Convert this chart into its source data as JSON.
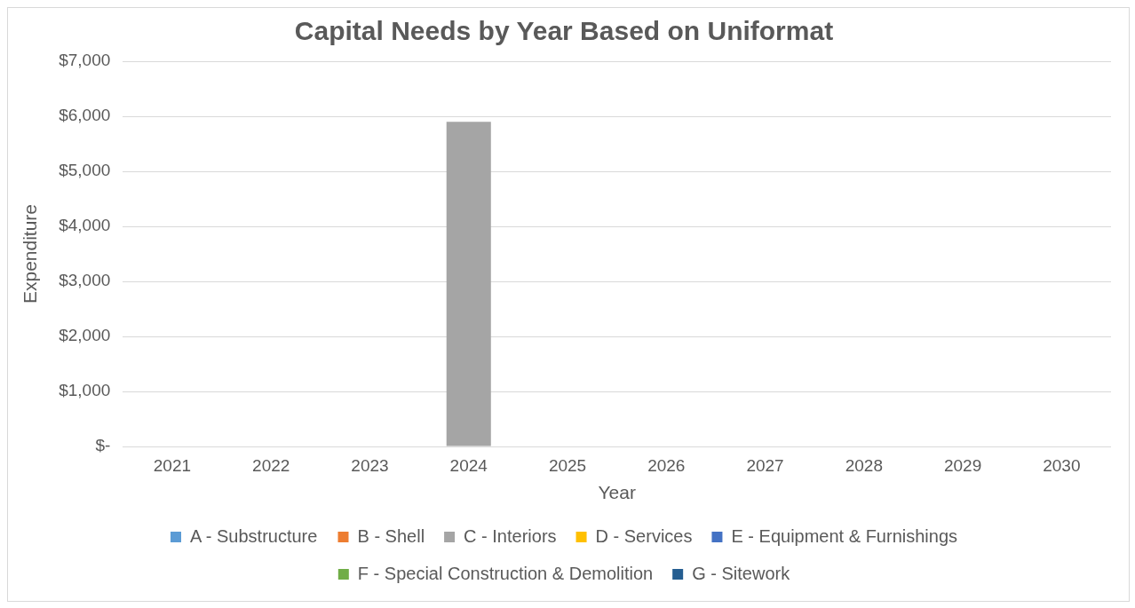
{
  "chart_data": {
    "type": "bar",
    "title": "Capital Needs by Year Based on Uniformat",
    "xlabel": "Year",
    "ylabel": "Expenditure",
    "categories": [
      "2021",
      "2022",
      "2023",
      "2024",
      "2025",
      "2026",
      "2027",
      "2028",
      "2029",
      "2030"
    ],
    "series": [
      {
        "name": "A - Substructure",
        "color": "#5b9bd5",
        "values": [
          0,
          0,
          0,
          0,
          0,
          0,
          0,
          0,
          0,
          0
        ]
      },
      {
        "name": "B - Shell",
        "color": "#ed7d31",
        "values": [
          0,
          0,
          0,
          0,
          0,
          0,
          0,
          0,
          0,
          0
        ]
      },
      {
        "name": "C - Interiors",
        "color": "#a5a5a5",
        "values": [
          0,
          0,
          0,
          5900,
          0,
          0,
          0,
          0,
          0,
          0
        ]
      },
      {
        "name": "D - Services",
        "color": "#ffc000",
        "values": [
          0,
          0,
          0,
          0,
          0,
          0,
          0,
          0,
          0,
          0
        ]
      },
      {
        "name": "E - Equipment & Furnishings",
        "color": "#4472c4",
        "values": [
          0,
          0,
          0,
          0,
          0,
          0,
          0,
          0,
          0,
          0
        ]
      },
      {
        "name": "F - Special Construction & Demolition",
        "color": "#70ad47",
        "values": [
          0,
          0,
          0,
          0,
          0,
          0,
          0,
          0,
          0,
          0
        ]
      },
      {
        "name": "G - Sitework",
        "color": "#255e91",
        "values": [
          0,
          0,
          0,
          0,
          0,
          0,
          0,
          0,
          0,
          0
        ]
      }
    ],
    "stacked": true,
    "ylim": [
      0,
      7000
    ],
    "yticks": [
      {
        "value": 0,
        "label": "$-"
      },
      {
        "value": 1000,
        "label": "$1,000"
      },
      {
        "value": 2000,
        "label": "$2,000"
      },
      {
        "value": 3000,
        "label": "$3,000"
      },
      {
        "value": 4000,
        "label": "$4,000"
      },
      {
        "value": 5000,
        "label": "$5,000"
      },
      {
        "value": 6000,
        "label": "$6,000"
      },
      {
        "value": 7000,
        "label": "$7,000"
      }
    ],
    "grid": "y",
    "legend": "bottom"
  }
}
